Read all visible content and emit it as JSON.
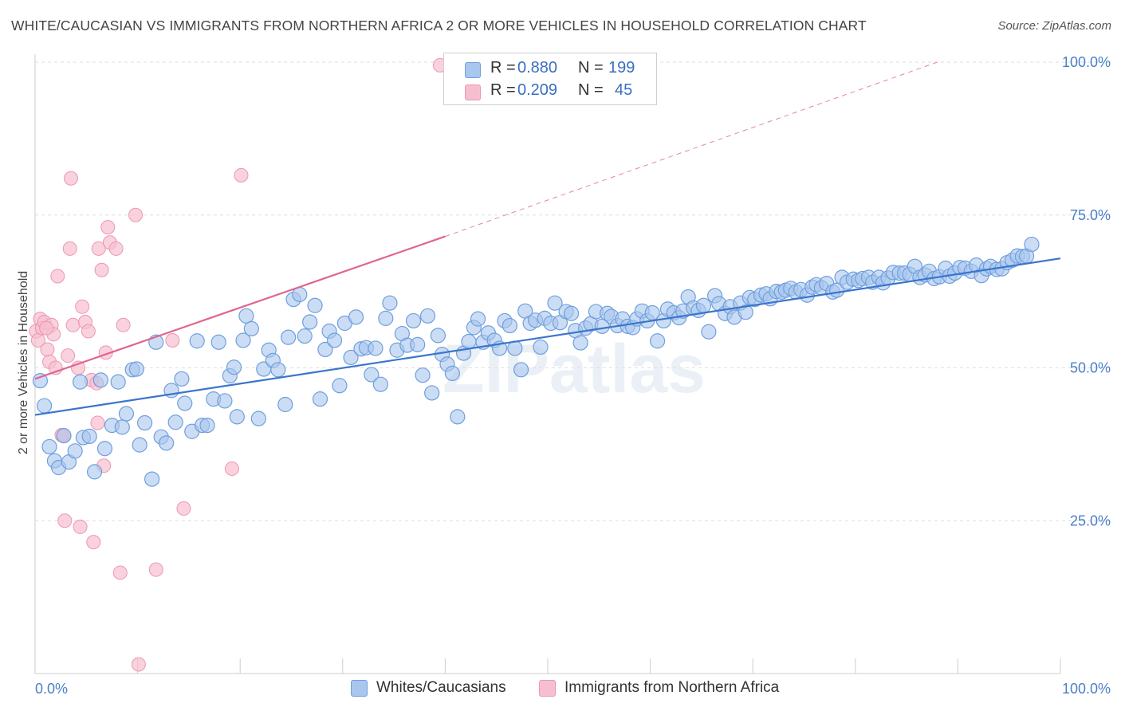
{
  "title": "WHITE/CAUCASIAN VS IMMIGRANTS FROM NORTHERN AFRICA 2 OR MORE VEHICLES IN HOUSEHOLD CORRELATION CHART",
  "source": "Source: ZipAtlas.com",
  "watermark": "ZIPatlas",
  "legend": {
    "series1": {
      "r_label": "R =",
      "r_value": "0.880",
      "n_label": "N =",
      "n_value": "199"
    },
    "series2": {
      "r_label": "R =",
      "r_value": "0.209",
      "n_label": "N =",
      "n_value": "45"
    }
  },
  "bottom_legend": {
    "series1": "Whites/Caucasians",
    "series2": "Immigrants from Northern Africa"
  },
  "colors": {
    "blue_fill": "#a9c6ef",
    "blue_stroke": "#6f9fdc",
    "blue_line": "#3a75cc",
    "pink_fill": "#f6bfd0",
    "pink_stroke": "#ec97b2",
    "pink_line": "#e0658e",
    "grid": "#dedede",
    "tick_text": "#4a7fc8"
  },
  "chart_data": {
    "type": "scatter",
    "title": "WHITE/CAUCASIAN VS IMMIGRANTS FROM NORTHERN AFRICA 2 OR MORE VEHICLES IN HOUSEHOLD CORRELATION CHART",
    "xlabel": "",
    "ylabel": "2 or more Vehicles in Household",
    "xlim": [
      0,
      100
    ],
    "ylim": [
      0,
      100
    ],
    "x_tick_labels": [
      "0.0%",
      "100.0%"
    ],
    "y_ticks": [
      25,
      50,
      75,
      100
    ],
    "y_tick_labels": [
      "25.0%",
      "50.0%",
      "75.0%",
      "100.0%"
    ],
    "grid": true,
    "legend_position": "top-center",
    "series": [
      {
        "name": "Whites/Caucasians",
        "r": 0.88,
        "n": 199,
        "trend": {
          "x": [
            0,
            100
          ],
          "y": [
            42.3,
            67.9
          ],
          "style": "solid"
        },
        "points": [
          [
            0.5,
            47.9
          ],
          [
            0.9,
            43.8
          ],
          [
            1.4,
            37.1
          ],
          [
            1.9,
            34.8
          ],
          [
            2.3,
            33.7
          ],
          [
            2.8,
            38.9
          ],
          [
            3.3,
            34.6
          ],
          [
            3.9,
            36.4
          ],
          [
            4.4,
            47.7
          ],
          [
            4.7,
            38.6
          ],
          [
            5.3,
            38.8
          ],
          [
            5.8,
            33.0
          ],
          [
            6.4,
            48.0
          ],
          [
            6.8,
            36.8
          ],
          [
            7.5,
            40.6
          ],
          [
            8.1,
            47.7
          ],
          [
            8.5,
            40.3
          ],
          [
            8.9,
            42.5
          ],
          [
            9.5,
            49.7
          ],
          [
            9.9,
            49.8
          ],
          [
            10.2,
            37.4
          ],
          [
            10.7,
            41.0
          ],
          [
            11.4,
            31.8
          ],
          [
            11.8,
            54.2
          ],
          [
            12.3,
            38.7
          ],
          [
            12.8,
            37.7
          ],
          [
            13.3,
            46.3
          ],
          [
            13.7,
            41.1
          ],
          [
            14.3,
            48.2
          ],
          [
            14.6,
            44.2
          ],
          [
            15.3,
            39.6
          ],
          [
            15.8,
            54.4
          ],
          [
            16.3,
            40.6
          ],
          [
            16.8,
            40.6
          ],
          [
            17.4,
            44.9
          ],
          [
            17.9,
            54.2
          ],
          [
            18.5,
            44.6
          ],
          [
            19.0,
            48.7
          ],
          [
            19.4,
            50.1
          ],
          [
            19.7,
            42.0
          ],
          [
            20.3,
            54.5
          ],
          [
            20.6,
            58.5
          ],
          [
            21.1,
            56.4
          ],
          [
            21.8,
            41.7
          ],
          [
            22.3,
            49.8
          ],
          [
            22.8,
            52.9
          ],
          [
            23.2,
            51.2
          ],
          [
            23.7,
            49.7
          ],
          [
            24.4,
            44.0
          ],
          [
            24.7,
            55.0
          ],
          [
            25.2,
            61.2
          ],
          [
            25.8,
            62.0
          ],
          [
            26.3,
            55.2
          ],
          [
            26.8,
            57.5
          ],
          [
            27.3,
            60.2
          ],
          [
            27.8,
            44.9
          ],
          [
            28.3,
            53.0
          ],
          [
            28.7,
            56.0
          ],
          [
            29.2,
            54.5
          ],
          [
            29.7,
            47.1
          ],
          [
            30.2,
            57.3
          ],
          [
            30.8,
            51.7
          ],
          [
            31.3,
            58.3
          ],
          [
            31.8,
            53.1
          ],
          [
            32.3,
            53.3
          ],
          [
            32.8,
            48.9
          ],
          [
            33.2,
            53.2
          ],
          [
            33.7,
            47.3
          ],
          [
            34.2,
            58.1
          ],
          [
            34.6,
            60.6
          ],
          [
            35.3,
            52.9
          ],
          [
            35.8,
            55.6
          ],
          [
            36.3,
            53.7
          ],
          [
            36.9,
            57.7
          ],
          [
            37.3,
            53.8
          ],
          [
            37.8,
            48.8
          ],
          [
            38.3,
            58.5
          ],
          [
            38.7,
            45.9
          ],
          [
            39.3,
            55.3
          ],
          [
            39.7,
            52.2
          ],
          [
            40.2,
            50.6
          ],
          [
            40.7,
            49.1
          ],
          [
            41.2,
            42.0
          ],
          [
            41.8,
            52.4
          ],
          [
            42.3,
            54.3
          ],
          [
            42.8,
            56.6
          ],
          [
            43.2,
            58.0
          ],
          [
            43.7,
            54.2
          ],
          [
            44.2,
            55.7
          ],
          [
            44.8,
            54.5
          ],
          [
            45.3,
            53.2
          ],
          [
            45.8,
            57.7
          ],
          [
            46.3,
            56.9
          ],
          [
            46.8,
            53.2
          ],
          [
            47.4,
            49.7
          ],
          [
            47.8,
            59.3
          ],
          [
            48.3,
            57.3
          ],
          [
            48.8,
            57.8
          ],
          [
            49.3,
            53.4
          ],
          [
            49.7,
            58.1
          ],
          [
            50.3,
            57.3
          ],
          [
            50.7,
            60.6
          ],
          [
            51.2,
            57.4
          ],
          [
            51.8,
            59.2
          ],
          [
            52.3,
            58.9
          ],
          [
            52.7,
            56.1
          ],
          [
            53.2,
            54.1
          ],
          [
            53.7,
            56.5
          ],
          [
            54.2,
            57.2
          ],
          [
            54.7,
            59.2
          ],
          [
            55.3,
            56.8
          ],
          [
            55.8,
            58.9
          ],
          [
            56.2,
            58.4
          ],
          [
            56.8,
            56.9
          ],
          [
            57.3,
            58.0
          ],
          [
            57.8,
            56.8
          ],
          [
            58.3,
            56.6
          ],
          [
            58.7,
            58.0
          ],
          [
            59.2,
            59.3
          ],
          [
            59.7,
            57.7
          ],
          [
            60.2,
            59.0
          ],
          [
            60.7,
            54.4
          ],
          [
            61.3,
            57.7
          ],
          [
            61.7,
            59.6
          ],
          [
            62.3,
            59.0
          ],
          [
            62.8,
            58.2
          ],
          [
            63.2,
            59.3
          ],
          [
            63.7,
            61.6
          ],
          [
            64.2,
            59.8
          ],
          [
            64.7,
            59.4
          ],
          [
            65.2,
            60.2
          ],
          [
            65.7,
            55.9
          ],
          [
            66.3,
            61.8
          ],
          [
            66.7,
            60.5
          ],
          [
            67.3,
            58.9
          ],
          [
            67.8,
            60.0
          ],
          [
            68.2,
            58.3
          ],
          [
            68.8,
            60.6
          ],
          [
            69.3,
            59.1
          ],
          [
            69.7,
            61.5
          ],
          [
            70.2,
            61.2
          ],
          [
            70.8,
            61.9
          ],
          [
            71.3,
            62.1
          ],
          [
            71.7,
            61.3
          ],
          [
            72.3,
            62.5
          ],
          [
            72.8,
            62.4
          ],
          [
            73.2,
            62.7
          ],
          [
            73.7,
            63.0
          ],
          [
            74.2,
            62.4
          ],
          [
            74.7,
            62.8
          ],
          [
            75.3,
            61.9
          ],
          [
            75.8,
            63.2
          ],
          [
            76.2,
            63.6
          ],
          [
            76.7,
            63.1
          ],
          [
            77.2,
            63.8
          ],
          [
            77.8,
            62.4
          ],
          [
            78.2,
            62.7
          ],
          [
            78.7,
            64.8
          ],
          [
            79.2,
            64.0
          ],
          [
            79.8,
            64.5
          ],
          [
            80.3,
            64.3
          ],
          [
            80.7,
            64.6
          ],
          [
            81.3,
            64.8
          ],
          [
            81.7,
            64.0
          ],
          [
            82.3,
            64.8
          ],
          [
            82.7,
            63.9
          ],
          [
            83.2,
            64.7
          ],
          [
            83.7,
            65.6
          ],
          [
            84.3,
            65.5
          ],
          [
            84.8,
            65.5
          ],
          [
            85.3,
            65.3
          ],
          [
            85.8,
            66.6
          ],
          [
            86.3,
            64.8
          ],
          [
            86.8,
            65.2
          ],
          [
            87.2,
            65.8
          ],
          [
            87.7,
            64.6
          ],
          [
            88.2,
            64.9
          ],
          [
            88.8,
            66.3
          ],
          [
            89.2,
            65.0
          ],
          [
            89.7,
            65.5
          ],
          [
            90.2,
            66.4
          ],
          [
            90.7,
            66.3
          ],
          [
            91.3,
            65.8
          ],
          [
            91.8,
            66.8
          ],
          [
            92.3,
            65.1
          ],
          [
            92.8,
            66.2
          ],
          [
            93.2,
            66.6
          ],
          [
            93.8,
            66.1
          ],
          [
            94.3,
            66.2
          ],
          [
            94.8,
            67.2
          ],
          [
            95.3,
            67.6
          ],
          [
            95.8,
            68.3
          ],
          [
            96.3,
            68.2
          ],
          [
            96.7,
            68.3
          ],
          [
            97.2,
            70.2
          ]
        ]
      },
      {
        "name": "Immigrants from Northern Africa",
        "r": 0.209,
        "n": 45,
        "trend": {
          "x": [
            0,
            40
          ],
          "y": [
            48.2,
            71.5
          ],
          "style": "solid",
          "extended_to": [
            88,
            100
          ],
          "extended_style": "dashed"
        },
        "points": [
          [
            0.1,
            56.0
          ],
          [
            0.3,
            54.5
          ],
          [
            0.5,
            58.0
          ],
          [
            0.7,
            56.5
          ],
          [
            0.9,
            57.5
          ],
          [
            1.2,
            53.0
          ],
          [
            1.4,
            51.0
          ],
          [
            1.6,
            57.0
          ],
          [
            1.8,
            55.5
          ],
          [
            2.0,
            50.0
          ],
          [
            2.2,
            65.0
          ],
          [
            2.6,
            39.0
          ],
          [
            2.9,
            25.0
          ],
          [
            3.2,
            52.0
          ],
          [
            3.4,
            69.5
          ],
          [
            3.5,
            81.0
          ],
          [
            3.7,
            57.0
          ],
          [
            4.2,
            50.0
          ],
          [
            4.4,
            24.0
          ],
          [
            4.6,
            60.0
          ],
          [
            4.9,
            57.5
          ],
          [
            5.2,
            56.0
          ],
          [
            5.5,
            48.0
          ],
          [
            5.7,
            21.5
          ],
          [
            6.1,
            41.0
          ],
          [
            6.2,
            69.5
          ],
          [
            6.5,
            66.0
          ],
          [
            6.7,
            34.0
          ],
          [
            6.9,
            52.5
          ],
          [
            7.1,
            73.0
          ],
          [
            7.3,
            70.5
          ],
          [
            7.9,
            69.5
          ],
          [
            8.3,
            16.5
          ],
          [
            8.6,
            57.0
          ],
          [
            9.8,
            75.0
          ],
          [
            10.1,
            1.5
          ],
          [
            11.8,
            17.0
          ],
          [
            13.4,
            54.5
          ],
          [
            14.5,
            27.0
          ],
          [
            19.2,
            33.5
          ],
          [
            20.1,
            81.5
          ],
          [
            39.5,
            99.5
          ],
          [
            2.8,
            39.0
          ],
          [
            1.1,
            56.5
          ],
          [
            6.0,
            47.5
          ]
        ]
      }
    ]
  }
}
